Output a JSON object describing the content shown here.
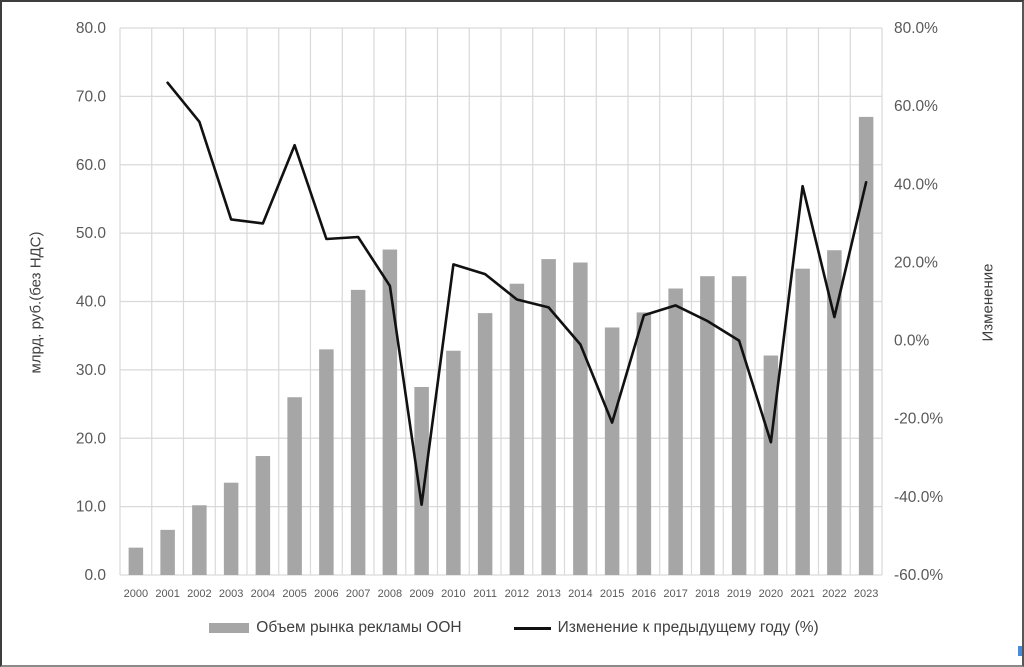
{
  "frame": {
    "background": "#ffffff",
    "border_color": "#3d3d3d",
    "corner_mark_color": "#4a89dc"
  },
  "chart_data": {
    "type": "bar",
    "subtype": "combo-bar-line-dual-axis",
    "categories": [
      "2000",
      "2001",
      "2002",
      "2003",
      "2004",
      "2005",
      "2006",
      "2007",
      "2008",
      "2009",
      "2010",
      "2011",
      "2012",
      "2013",
      "2014",
      "2015",
      "2016",
      "2017",
      "2018",
      "2019",
      "2020",
      "2021",
      "2022",
      "2023"
    ],
    "series": [
      {
        "name": "Объем рынка рекламы ООН",
        "type": "bar",
        "axis": "left",
        "color": "#a6a6a6",
        "values": [
          4.0,
          6.6,
          10.2,
          13.5,
          17.4,
          26.0,
          33.0,
          41.7,
          47.6,
          27.5,
          32.8,
          38.3,
          42.6,
          46.2,
          45.7,
          36.2,
          38.4,
          41.9,
          43.7,
          43.7,
          32.1,
          44.8,
          47.5,
          67.0
        ]
      },
      {
        "name": "Изменение к предыдущему году (%)",
        "type": "line",
        "axis": "right",
        "color": "#111111",
        "values": [
          null,
          66,
          56,
          31,
          30,
          50,
          26,
          26.5,
          14,
          -42,
          19.5,
          17,
          10.5,
          8.5,
          -1,
          -21,
          6.5,
          9,
          5,
          0,
          -26,
          39.5,
          6,
          40.5
        ]
      }
    ],
    "left_axis": {
      "title": "млрд. руб.(без НДС)",
      "min": 0,
      "max": 80,
      "step": 10,
      "tick_labels": [
        "80.0",
        "70.0",
        "60.0",
        "50.0",
        "40.0",
        "30.0",
        "20.0",
        "10.0",
        "0.0"
      ]
    },
    "right_axis": {
      "title": "Изменение",
      "min": -60,
      "max": 80,
      "step": 20,
      "tick_labels": [
        "80.0%",
        "60.0%",
        "40.0%",
        "20.0%",
        "0.0%",
        "-20.0%",
        "-40.0%",
        "-60.0%"
      ]
    },
    "grid": true,
    "gridline_color": "#d9d9d9",
    "tick_label_color": "#595959",
    "legend_position": "bottom"
  },
  "legend": {
    "items": [
      {
        "label": "Объем рынка рекламы ООН",
        "swatch": "bar"
      },
      {
        "label": "Изменение к предыдущему году (%)",
        "swatch": "line"
      }
    ]
  }
}
